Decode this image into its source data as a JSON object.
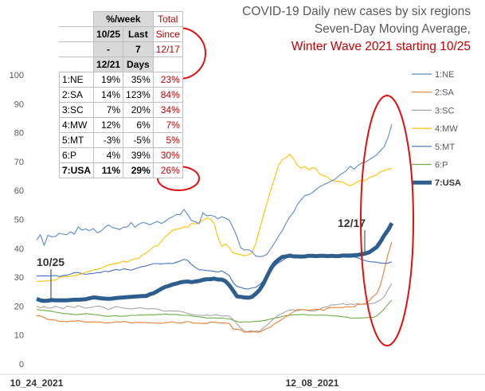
{
  "title": {
    "line1": "COVID-19 Daily new cases by six regions",
    "line2": "Seven-Day Moving Average,",
    "line3": "Winter Wave 2021 starting 10/25"
  },
  "table": {
    "header_group": "%/week",
    "header_total": "Total",
    "col1": [
      "10/25",
      "-",
      "12/21"
    ],
    "col2": [
      "Last",
      "7",
      "Days"
    ],
    "col3": [
      "Since",
      "12/17"
    ],
    "rows": [
      {
        "label": "1:NE",
        "a": "19%",
        "b": "35%",
        "c": "23%"
      },
      {
        "label": "2:SA",
        "a": "14%",
        "b": "123%",
        "c": "84%"
      },
      {
        "label": "3:SC",
        "a": "7%",
        "b": "20%",
        "c": "34%"
      },
      {
        "label": "4:MW",
        "a": "12%",
        "b": "6%",
        "c": "7%"
      },
      {
        "label": "5:MT",
        "a": "-3%",
        "b": "-5%",
        "c": "5%"
      },
      {
        "label": "6:P",
        "a": "4%",
        "b": "39%",
        "c": "30%"
      },
      {
        "label": "7:USA",
        "a": "11%",
        "b": "29%",
        "c": "26%"
      }
    ]
  },
  "chart_data": {
    "type": "line",
    "title": "COVID-19 Daily new cases by six regions",
    "subtitle": "Seven-Day Moving Average, Winter Wave 2021 starting 10/25",
    "x_ticks": [
      "10_24_2021",
      "12_08_2021"
    ],
    "ylim": [
      0,
      100
    ],
    "y_ticks": [
      0,
      10,
      20,
      30,
      40,
      50,
      60,
      70,
      80,
      90,
      100
    ],
    "grid": false,
    "legend_position": "right",
    "annotations": [
      "10/25",
      "12/17"
    ],
    "series": [
      {
        "name": "1:NE",
        "color": "#5a8ac6",
        "values": [
          42.8,
          44.7,
          41,
          44.5,
          44,
          44.1,
          45.2,
          44.9,
          44.7,
          45.7,
          44.9,
          47.4,
          46.3,
          46.7,
          46.1,
          46.8,
          45.4,
          45.9,
          47.2,
          48.1,
          47.2,
          46.9,
          46.5,
          47.3,
          47.4,
          48.9,
          47.3,
          48.3,
          48.9,
          48.7,
          48.1,
          48.8,
          49.3,
          48.6,
          49.3,
          50.3,
          50.9,
          51.7,
          51.6,
          53.5,
          51.6,
          49.6,
          49.1,
          48.5,
          52.3,
          51.2,
          51.4,
          51.1,
          50.2,
          50.9,
          50.4,
          49.7,
          47.1,
          44.1,
          40.2,
          39.4,
          39.5,
          38.9,
          37.3,
          37.1,
          37.3,
          38,
          40,
          41.9,
          44.2,
          46.1,
          48.6,
          50.9,
          52.5,
          55.1,
          56.8,
          58.3,
          58.5,
          59.3,
          60.4,
          61.4,
          62,
          62.6,
          63.3,
          63.9,
          65.1,
          66,
          66.9,
          68.4,
          67.4,
          68.6,
          69.5,
          69.8,
          70.6,
          71.5,
          72.3,
          73.8,
          75.2,
          78.4,
          82.9
        ]
      },
      {
        "name": "2:SA",
        "color": "#ed7d31",
        "values": [
          16.7,
          16.6,
          16,
          15.4,
          15.3,
          15.2,
          14.7,
          14.7,
          14.6,
          14.8,
          14.8,
          15,
          14.7,
          14.5,
          14.5,
          14.6,
          14.5,
          14.5,
          14.2,
          14.2,
          14.3,
          14.6,
          14.4,
          14.7,
          14.5,
          14.2,
          14.3,
          14.4,
          14.3,
          14.3,
          14.2,
          14.2,
          14.1,
          14,
          14.3,
          14.4,
          14.6,
          14.2,
          14.1,
          14.4,
          14.7,
          14.3,
          14.1,
          14.1,
          14,
          14,
          14.5,
          14.4,
          14.3,
          14.2,
          14.1,
          14,
          12.1,
          12,
          11.8,
          10.9,
          11.2,
          11.4,
          11,
          11,
          11.7,
          12.3,
          12.8,
          14,
          14.6,
          15.5,
          16.3,
          17.2,
          18,
          18.8,
          18.8,
          18.7,
          18.5,
          18.8,
          18.9,
          18.9,
          18.5,
          19.3,
          19.5,
          19.5,
          19.5,
          19.5,
          19.8,
          19.7,
          19.8,
          20.6,
          20.6,
          20.9,
          21.8,
          23.3,
          24.3,
          27.3,
          32.6,
          38,
          42.2
        ]
      },
      {
        "name": "3:SC",
        "color": "#a5a5a5",
        "values": [
          20,
          19.4,
          19.9,
          19.3,
          19.4,
          20,
          19.5,
          19.1,
          20,
          19.8,
          19.5,
          20.2,
          19.7,
          19.3,
          19.5,
          19.7,
          20,
          19.9,
          19.4,
          18.8,
          19.3,
          19.9,
          19.6,
          19.3,
          19.2,
          19,
          19.2,
          19.4,
          19.3,
          19,
          19.1,
          19.1,
          19,
          18.5,
          18.2,
          18.4,
          18.3,
          18.3,
          18.2,
          17.9,
          17.4,
          17.1,
          16.9,
          16.8,
          16.8,
          16.9,
          16.7,
          17,
          16.9,
          16.5,
          16.7,
          16.5,
          15.4,
          13.9,
          12.4,
          11.4,
          11,
          11,
          11.4,
          11.3,
          12.5,
          13.4,
          14.8,
          15.8,
          16.9,
          17.4,
          18.2,
          18.6,
          18.7,
          18.4,
          18.7,
          18.8,
          18.4,
          18.3,
          18.4,
          19,
          19.6,
          19.8,
          20.4,
          20.4,
          20.6,
          20.8,
          20.5,
          20.7,
          20.6,
          20.9,
          20.6,
          20.7,
          20.8,
          20.9,
          21.4,
          22.1,
          23.3,
          25.7,
          27.8
        ]
      },
      {
        "name": "4:MW",
        "color": "#ffc000",
        "values": [
          28.5,
          28.6,
          28.6,
          28.8,
          28.9,
          29,
          29.8,
          30.3,
          30.2,
          30.3,
          30.5,
          30.8,
          31.2,
          31.7,
          32,
          32.6,
          32.7,
          33.1,
          33.7,
          34.2,
          34.5,
          34.8,
          35,
          35.6,
          35.2,
          35.9,
          36.4,
          36.5,
          37.7,
          38.4,
          39.4,
          40.6,
          40.9,
          42.3,
          44,
          45.1,
          46.2,
          46.6,
          46.8,
          47.4,
          47.3,
          48.6,
          48.4,
          48.9,
          49.7,
          50.5,
          50.1,
          48.6,
          43.6,
          40.7,
          41.5,
          40.2,
          38.4,
          38.1,
          37.8,
          37.4,
          37.7,
          38.4,
          41.7,
          46.5,
          51.3,
          55.8,
          60.3,
          64.4,
          68.6,
          70.6,
          71.4,
          72.5,
          70.9,
          68.7,
          67.7,
          68.3,
          67.2,
          67.9,
          67.4,
          65.6,
          65.1,
          64.6,
          63.5,
          63.2,
          63.2,
          62.9,
          62.2,
          61.6,
          62.3,
          63.1,
          63.6,
          63.5,
          64.4,
          64.9,
          65.4,
          66.5,
          66.9,
          67.4,
          67.6
        ]
      },
      {
        "name": "5:MT",
        "color": "#4472c4",
        "values": [
          30.4,
          30.4,
          30.5,
          30.4,
          30.5,
          30.6,
          30.2,
          30.6,
          30.7,
          31.1,
          31.6,
          31.6,
          31.2,
          31,
          31.2,
          31.3,
          31.6,
          31.6,
          32.1,
          31.9,
          32.3,
          32.7,
          32.4,
          32.9,
          32.7,
          32.4,
          32.9,
          33.3,
          33.7,
          33.9,
          34.3,
          34.7,
          34.7,
          34.6,
          34.7,
          34.8,
          34.7,
          35.2,
          35.6,
          36.2,
          35.8,
          34.4,
          33.4,
          32.6,
          32.5,
          32.3,
          32.2,
          32,
          31.8,
          32.2,
          31.4,
          30.5,
          28.1,
          26.8,
          26.5,
          26,
          25.9,
          26.3,
          26.5,
          27.4,
          28.8,
          30.7,
          32.4,
          33.9,
          35,
          35.7,
          36.6,
          36.9,
          37.1,
          37.3,
          37.3,
          37.1,
          37.1,
          37.2,
          37.5,
          37.5,
          37.4,
          37.4,
          37.4,
          37.3,
          37.1,
          37,
          36.9,
          36.9,
          37,
          36.7,
          36.2,
          35.7,
          35.4,
          35.3,
          35.2,
          34.9,
          34.8,
          34.9,
          35.3
        ]
      },
      {
        "name": "6:P",
        "color": "#70ad47",
        "values": [
          18.9,
          18.6,
          18.5,
          18.4,
          18.2,
          17.9,
          17.7,
          17.4,
          17.4,
          17.2,
          17.1,
          17.1,
          17.2,
          17.4,
          17.3,
          17.1,
          17,
          16.8,
          16.5,
          16.5,
          16.6,
          16.6,
          16.5,
          16.5,
          16.6,
          16.8,
          16.8,
          16.9,
          16.9,
          17,
          17,
          17,
          17.1,
          17.1,
          17.3,
          17.1,
          17.1,
          17.1,
          16.9,
          16.8,
          16.8,
          16.6,
          16.4,
          16.3,
          16.1,
          15.9,
          15.9,
          15.9,
          15.8,
          15.8,
          15.7,
          15.6,
          15.1,
          14.7,
          14.4,
          14.6,
          14.5,
          14.6,
          14.7,
          14.8,
          15,
          15.2,
          15.6,
          15.8,
          16.1,
          16.4,
          16.7,
          16.8,
          17,
          17,
          17.1,
          17.1,
          16.9,
          16.9,
          16.8,
          16.9,
          16.9,
          16.8,
          16.7,
          16.6,
          16.5,
          16.3,
          16.2,
          15.9,
          15.8,
          15.9,
          15.9,
          16,
          16.1,
          16.1,
          16.6,
          17.7,
          19.1,
          20.6,
          22.1
        ]
      },
      {
        "name": "7:USA",
        "color": "#2e5e8e",
        "values": [
          22.5,
          22,
          21.8,
          21.9,
          22.1,
          22,
          22,
          22,
          22,
          22.1,
          22.2,
          22.2,
          22.3,
          22.4,
          22.7,
          23,
          22.9,
          22.7,
          22.6,
          22.5,
          22.6,
          22.8,
          22.9,
          23,
          23.1,
          23.2,
          23.3,
          23.4,
          23.5,
          23.5,
          24.1,
          24.5,
          25.2,
          26,
          26.6,
          27,
          27.5,
          27.8,
          28.2,
          28.4,
          28.5,
          28.3,
          28.5,
          28.7,
          29.1,
          29.3,
          29.3,
          29.5,
          29.2,
          29.2,
          28.6,
          27.2,
          25.4,
          23.4,
          23.2,
          23,
          22.9,
          23.2,
          24.3,
          25.6,
          27.7,
          30.4,
          33,
          34.9,
          36.1,
          37,
          37.2,
          37.5,
          37.2,
          37.2,
          37.1,
          37.2,
          37.4,
          37.4,
          37.3,
          37.4,
          37.4,
          37.3,
          37.4,
          37.3,
          37.3,
          37.5,
          37.5,
          37.5,
          37.6,
          37.7,
          37.9,
          38.2,
          38.6,
          39.5,
          40.4,
          42.3,
          44.5,
          46.3,
          48.7
        ]
      }
    ]
  }
}
